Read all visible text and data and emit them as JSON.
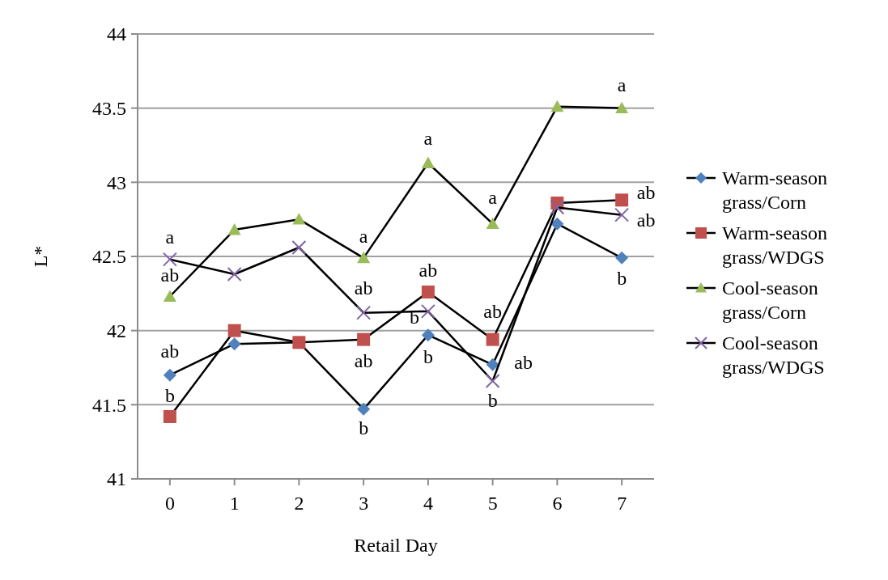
{
  "chart_data": {
    "type": "line",
    "xlabel": "Retail Day",
    "ylabel": "L*",
    "x": [
      0,
      1,
      2,
      3,
      4,
      5,
      6,
      7
    ],
    "xlim": [
      -0.5,
      7.5
    ],
    "xticks": [
      0,
      1,
      2,
      3,
      4,
      5,
      6,
      7
    ],
    "ylim": [
      41,
      44
    ],
    "yticks": [
      41,
      41.5,
      42,
      42.5,
      43,
      43.5,
      44
    ],
    "grid": "y",
    "legend": "right",
    "line_style": "solid",
    "series": [
      {
        "name": "Warm-season grass/Corn",
        "color": "#4f81bd",
        "marker": "diamond",
        "values": [
          41.7,
          41.91,
          41.92,
          41.47,
          41.97,
          41.77,
          42.72,
          42.49
        ]
      },
      {
        "name": "Warm-season grass/WDGS",
        "color": "#c0504d",
        "marker": "square",
        "values": [
          41.42,
          42.0,
          41.92,
          41.94,
          42.26,
          41.94,
          42.86,
          42.88
        ]
      },
      {
        "name": "Cool-season grass/Corn",
        "color": "#9bbb59",
        "marker": "triangle",
        "values": [
          42.23,
          42.68,
          42.75,
          42.49,
          43.13,
          42.72,
          43.51,
          43.5
        ]
      },
      {
        "name": "Cool-season grass/WDGS",
        "color": "#8064a2",
        "marker": "cross",
        "values": [
          42.48,
          42.38,
          42.56,
          42.12,
          42.13,
          41.66,
          42.83,
          42.78
        ]
      }
    ],
    "annotations": [
      {
        "text": "a",
        "x": 0,
        "y": 42.48
      },
      {
        "text": "ab",
        "x": 0,
        "y": 42.23
      },
      {
        "text": "ab",
        "x": 0,
        "y": 41.7
      },
      {
        "text": "b",
        "x": 0,
        "y": 41.42
      },
      {
        "text": "a",
        "x": 3,
        "y": 42.49
      },
      {
        "text": "ab",
        "x": 3,
        "y": 42.12
      },
      {
        "text": "ab",
        "x": 3,
        "y": 41.94
      },
      {
        "text": "b",
        "x": 3,
        "y": 41.47
      },
      {
        "text": "a",
        "x": 4,
        "y": 43.13
      },
      {
        "text": "ab",
        "x": 4,
        "y": 42.26
      },
      {
        "text": "b",
        "x": 4,
        "y": 42.13
      },
      {
        "text": "b",
        "x": 4,
        "y": 41.97
      },
      {
        "text": "a",
        "x": 5,
        "y": 42.72
      },
      {
        "text": "ab",
        "x": 5,
        "y": 41.94
      },
      {
        "text": "ab",
        "x": 5,
        "y": 41.77
      },
      {
        "text": "b",
        "x": 5,
        "y": 41.66
      },
      {
        "text": "a",
        "x": 7,
        "y": 43.5
      },
      {
        "text": "ab",
        "x": 7,
        "y": 42.88
      },
      {
        "text": "ab",
        "x": 7,
        "y": 42.78
      },
      {
        "text": "b",
        "x": 7,
        "y": 42.49
      }
    ]
  }
}
